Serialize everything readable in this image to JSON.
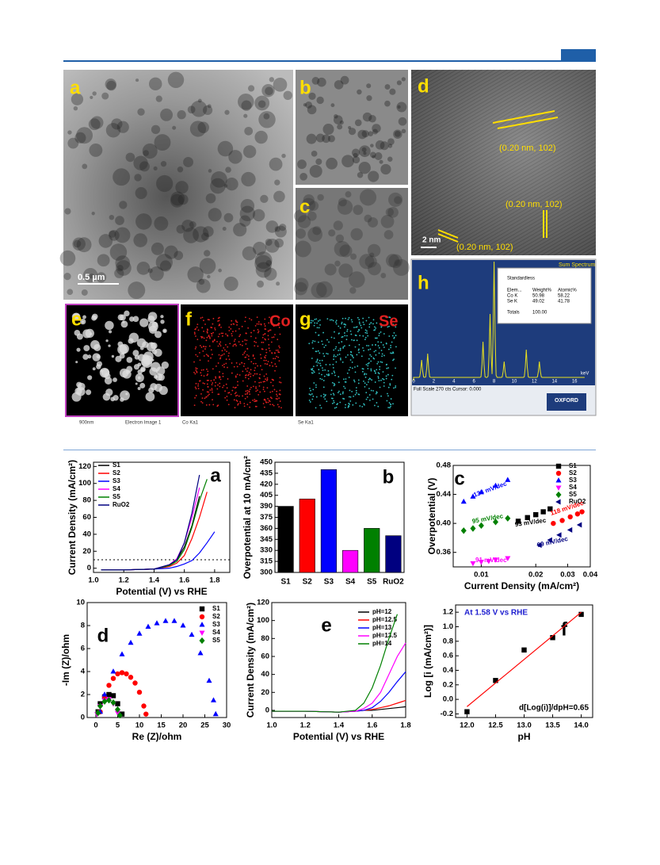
{
  "figure1": {
    "labels": [
      "a",
      "b",
      "c",
      "d",
      "e",
      "f",
      "g",
      "h"
    ],
    "scale_a": "0.5 µm",
    "lattice": [
      "(0.20 nm, 102)",
      "(0.20 nm, 102)",
      "(0.20 nm, 102)"
    ],
    "scale_d": "2 nm",
    "f_element": "Co",
    "g_element": "Se",
    "captions": [
      "900nm",
      "Electron Image 1",
      "Co Ka1",
      "Se Ka1"
    ],
    "eds": {
      "title": "Sum Spectrum",
      "method": "Standardless",
      "table": [
        [
          "Elem...",
          "Weight%",
          "Atomic%"
        ],
        [
          "Co K",
          "50.98",
          "58.22"
        ],
        [
          "Se K",
          "49.02",
          "41.78"
        ]
      ],
      "totals": [
        "Totals",
        "100.00"
      ],
      "unit": "keV",
      "footer": "Full Scale 270 cts Cursor: 0.000",
      "xticks": [
        "0",
        "2",
        "4",
        "6",
        "8",
        "10",
        "12",
        "14",
        "16"
      ],
      "logo": "OXFORD"
    }
  },
  "chart_data": [
    {
      "type": "line",
      "panel": "a",
      "x_label": "Potential (V) vs RHE",
      "y_label": "Current Density (mA/cm²)",
      "xlim": [
        1.0,
        1.9
      ],
      "ylim": [
        -5,
        125
      ],
      "xticks": [
        {
          "value": 1,
          "label": "1.0"
        },
        1.2,
        1.4,
        1.6,
        1.8
      ],
      "yticks": [
        0,
        20,
        40,
        60,
        80,
        100,
        120
      ],
      "hline": 10,
      "x": [
        1.05,
        1.2,
        1.4,
        1.5,
        1.55,
        1.6,
        1.65,
        1.7,
        1.75,
        1.8
      ],
      "series": [
        {
          "name": "S1",
          "color": "#000000",
          "values": [
            -2,
            -2,
            -1,
            3,
            10,
            25,
            50,
            85,
            null,
            null
          ]
        },
        {
          "name": "S2",
          "color": "#ff0000",
          "values": [
            -2,
            -2,
            -1,
            2,
            6,
            15,
            35,
            60,
            90,
            null
          ]
        },
        {
          "name": "S3",
          "color": "#0000ff",
          "values": [
            -2,
            -2,
            -1,
            0,
            2,
            5,
            9,
            18,
            30,
            43
          ]
        },
        {
          "name": "S4",
          "color": "#ff00ff",
          "values": [
            -2,
            -2,
            -1,
            4,
            11,
            30,
            60,
            95,
            null,
            null
          ]
        },
        {
          "name": "S5",
          "color": "#008000",
          "values": [
            -2,
            -2,
            -1,
            3,
            8,
            22,
            48,
            80,
            105,
            null
          ]
        },
        {
          "name": "RuO2",
          "color": "#000080",
          "values": [
            -2,
            -2,
            -1,
            4,
            10,
            30,
            65,
            110,
            null,
            null
          ]
        }
      ]
    },
    {
      "type": "bar",
      "panel": "b",
      "y_label": "Overpotential at 10 mA/cm²",
      "ylim": [
        300,
        450
      ],
      "yticks": [
        300,
        315,
        330,
        345,
        360,
        375,
        390,
        405,
        420,
        435,
        450
      ],
      "categories": [
        "S1",
        "S2",
        "S3",
        "S4",
        "S5",
        "RuO2"
      ],
      "values": [
        390,
        400,
        440,
        330,
        360,
        350
      ],
      "colors": [
        "#000000",
        "#ff0000",
        "#0000ff",
        "#ff00ff",
        "#008000",
        "#000080"
      ]
    },
    {
      "type": "scatter",
      "panel": "c",
      "x_label": "Current Density (mA/cm²)",
      "y_label": "Overpotential (V)",
      "xscale": "log",
      "xlim": [
        0.007,
        0.04
      ],
      "ylim": [
        0.34,
        0.48
      ],
      "xticks": [
        0.01,
        0.02,
        0.03,
        0.04
      ],
      "yticks": [
        0.36,
        {
          "value": 0.4,
          "label": "0.40"
        },
        0.44,
        0.48
      ],
      "annotations": [
        "134 mV/dec",
        "95 mV/dec",
        "93 mV/dec",
        "118 mV/dec",
        "91 mV/dec",
        "99 mV/dec"
      ],
      "series": [
        {
          "name": "S1",
          "color": "#000000",
          "marker": "square",
          "x": [
            0.016,
            0.018,
            0.02,
            0.022,
            0.024
          ],
          "values": [
            0.403,
            0.408,
            0.412,
            0.416,
            0.42
          ]
        },
        {
          "name": "S2",
          "color": "#ff0000",
          "marker": "circle",
          "x": [
            0.025,
            0.028,
            0.031,
            0.034,
            0.036
          ],
          "values": [
            0.4,
            0.404,
            0.409,
            0.413,
            0.416
          ]
        },
        {
          "name": "S3",
          "color": "#0000ff",
          "marker": "triangle",
          "x": [
            0.008,
            0.009,
            0.01,
            0.012,
            0.014
          ],
          "values": [
            0.43,
            0.437,
            0.443,
            0.452,
            0.46
          ]
        },
        {
          "name": "S4",
          "color": "#ff00ff",
          "marker": "triangle-down",
          "x": [
            0.009,
            0.01,
            0.011,
            0.012,
            0.014
          ],
          "values": [
            0.345,
            0.347,
            0.348,
            0.35,
            0.352
          ]
        },
        {
          "name": "S5",
          "color": "#008000",
          "marker": "diamond",
          "x": [
            0.008,
            0.009,
            0.01,
            0.012,
            0.014
          ],
          "values": [
            0.39,
            0.393,
            0.397,
            0.402,
            0.407
          ]
        },
        {
          "name": "RuO2",
          "color": "#000080",
          "marker": "triangle-left",
          "x": [
            0.021,
            0.024,
            0.027,
            0.031,
            0.035
          ],
          "values": [
            0.37,
            0.377,
            0.384,
            0.391,
            0.398
          ]
        }
      ]
    },
    {
      "type": "scatter",
      "panel": "d",
      "x_label": "Re (Z)/ohm",
      "y_label": "-Im (Z)/ohm",
      "xlim": [
        -2,
        30
      ],
      "ylim": [
        0,
        10
      ],
      "xticks": [
        0,
        5,
        10,
        15,
        20,
        25,
        30
      ],
      "yticks": [
        0,
        2,
        4,
        6,
        8,
        10
      ],
      "series": [
        {
          "name": "S1",
          "color": "#000000",
          "marker": "square",
          "x": [
            0.5,
            1,
            2,
            3,
            4,
            5,
            6
          ],
          "values": [
            0.5,
            1.2,
            1.8,
            2.0,
            1.9,
            1.2,
            0.3
          ]
        },
        {
          "name": "S2",
          "color": "#ff0000",
          "marker": "circle",
          "x": [
            1,
            2,
            3,
            4,
            5,
            6,
            7,
            8,
            9,
            10,
            11,
            11.5
          ],
          "values": [
            0.5,
            1.8,
            2.8,
            3.4,
            3.8,
            3.9,
            3.8,
            3.5,
            3.0,
            2.2,
            1.0,
            0.3
          ]
        },
        {
          "name": "S3",
          "color": "#0000ff",
          "marker": "triangle",
          "x": [
            1,
            2,
            4,
            6,
            8,
            10,
            12,
            14,
            16,
            18,
            20,
            22,
            24,
            26,
            27,
            27.5
          ],
          "values": [
            0.5,
            2,
            4,
            5.5,
            6.5,
            7.3,
            7.9,
            8.2,
            8.4,
            8.4,
            8.0,
            7.2,
            5.6,
            3.2,
            1.5,
            0.3
          ]
        },
        {
          "name": "S4",
          "color": "#ff00ff",
          "marker": "triangle-down",
          "x": [
            0.3,
            1,
            2,
            3,
            4,
            5
          ],
          "values": [
            0.3,
            1,
            1.5,
            1.6,
            1.2,
            0.4
          ]
        },
        {
          "name": "S5",
          "color": "#008000",
          "marker": "diamond",
          "x": [
            0.5,
            1,
            2,
            3,
            4,
            5,
            5.5
          ],
          "values": [
            0.4,
            1,
            1.4,
            1.5,
            1.3,
            0.7,
            0.2
          ]
        }
      ]
    },
    {
      "type": "line",
      "panel": "e",
      "x_label": "Potential (V) vs RHE",
      "y_label": "Current Density (mA/cm²)",
      "xlim": [
        1.0,
        1.8
      ],
      "ylim": [
        -8,
        120
      ],
      "xticks": [
        {
          "value": 1,
          "label": "1.0"
        },
        1.2,
        1.4,
        1.6,
        1.8
      ],
      "yticks": [
        0,
        20,
        40,
        60,
        80,
        100,
        120
      ],
      "x": [
        1.0,
        1.2,
        1.4,
        1.5,
        1.55,
        1.6,
        1.65,
        1.7,
        1.75,
        1.8
      ],
      "series": [
        {
          "name": "pH=12",
          "color": "#000000",
          "values": [
            -1,
            -1,
            -2,
            -1,
            0,
            0,
            1,
            2,
            3,
            4
          ]
        },
        {
          "name": "pH=12.5",
          "color": "#ff0000",
          "values": [
            -1,
            -1,
            -2,
            -1,
            0,
            1,
            3,
            5,
            8,
            11
          ]
        },
        {
          "name": "pH=13",
          "color": "#0000ff",
          "values": [
            -1,
            -1,
            -2,
            -1,
            0,
            3,
            10,
            20,
            32,
            43
          ]
        },
        {
          "name": "pH=13.5",
          "color": "#ff00ff",
          "values": [
            -1,
            -1,
            -2,
            -1,
            2,
            8,
            20,
            40,
            60,
            75
          ]
        },
        {
          "name": "pH=14",
          "color": "#008000",
          "values": [
            -1,
            -1,
            -2,
            0,
            8,
            25,
            50,
            80,
            107,
            null
          ]
        }
      ]
    },
    {
      "type": "scatter",
      "panel": "f",
      "x_label": "pH",
      "y_label": "Log [i (mA/cm²)]",
      "xlim": [
        11.8,
        14.2
      ],
      "ylim": [
        -0.25,
        1.3
      ],
      "xticks": [
        {
          "value": 12,
          "label": "12.0"
        },
        12.5,
        {
          "value": 13,
          "label": "13.0"
        },
        13.5,
        {
          "value": 14,
          "label": "14.0"
        }
      ],
      "yticks": [
        -0.2,
        {
          "value": 0,
          "label": "0.0"
        },
        0.2,
        0.4,
        0.6,
        0.8,
        {
          "value": 1,
          "label": "1.0"
        },
        1.2
      ],
      "annotations": [
        "At 1.58 V vs RHE",
        "d[Log(i)]/dpH=0.65"
      ],
      "series": [
        {
          "color": "#000000",
          "marker": "square",
          "x": [
            12,
            12.5,
            13,
            13.5,
            14
          ],
          "values": [
            -0.17,
            0.26,
            0.68,
            0.85,
            1.17
          ]
        }
      ],
      "fit": {
        "color": "#ff0000",
        "x": [
          12,
          14
        ],
        "values": [
          -0.1,
          1.2
        ]
      }
    }
  ]
}
